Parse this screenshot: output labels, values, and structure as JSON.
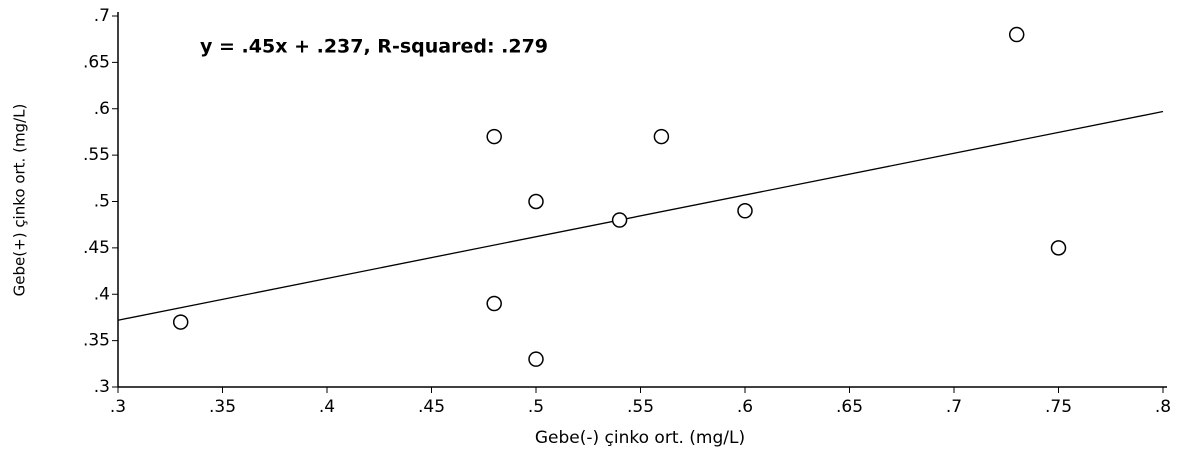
{
  "chart_data": {
    "type": "scatter",
    "annotation": "y = .45x + .237, R-squared: .279",
    "x_label": "Gebe(-) çinko ort. (mg/L)",
    "y_label": "Gebe(+) çinko ort. (mg/L)",
    "x": [
      0.33,
      0.48,
      0.48,
      0.5,
      0.5,
      0.54,
      0.56,
      0.6,
      0.73,
      0.75
    ],
    "values": [
      0.37,
      0.57,
      0.39,
      0.5,
      0.33,
      0.48,
      0.57,
      0.49,
      0.68,
      0.45
    ],
    "fit": {
      "slope": 0.45,
      "intercept": 0.237
    },
    "color": "#000000",
    "xlim": [
      0.3,
      0.8
    ],
    "ylim": [
      0.3,
      0.7
    ],
    "xticks": [
      {
        "value": 0.3,
        "label": ".3"
      },
      {
        "value": 0.35,
        "label": ".35"
      },
      {
        "value": 0.4,
        "label": ".4"
      },
      {
        "value": 0.45,
        "label": ".45"
      },
      {
        "value": 0.5,
        "label": ".5"
      },
      {
        "value": 0.55,
        "label": ".55"
      },
      {
        "value": 0.6,
        "label": ".6"
      },
      {
        "value": 0.65,
        "label": ".65"
      },
      {
        "value": 0.7,
        "label": ".7"
      },
      {
        "value": 0.75,
        "label": ".75"
      },
      {
        "value": 0.8,
        "label": ".8"
      }
    ],
    "yticks": [
      {
        "value": 0.3,
        "label": ".3"
      },
      {
        "value": 0.35,
        "label": ".35"
      },
      {
        "value": 0.4,
        "label": ".4"
      },
      {
        "value": 0.45,
        "label": ".45"
      },
      {
        "value": 0.5,
        "label": ".5"
      },
      {
        "value": 0.55,
        "label": ".55"
      },
      {
        "value": 0.6,
        "label": ".6"
      },
      {
        "value": 0.65,
        "label": ".65"
      },
      {
        "value": 0.7,
        "label": ".7"
      }
    ]
  }
}
